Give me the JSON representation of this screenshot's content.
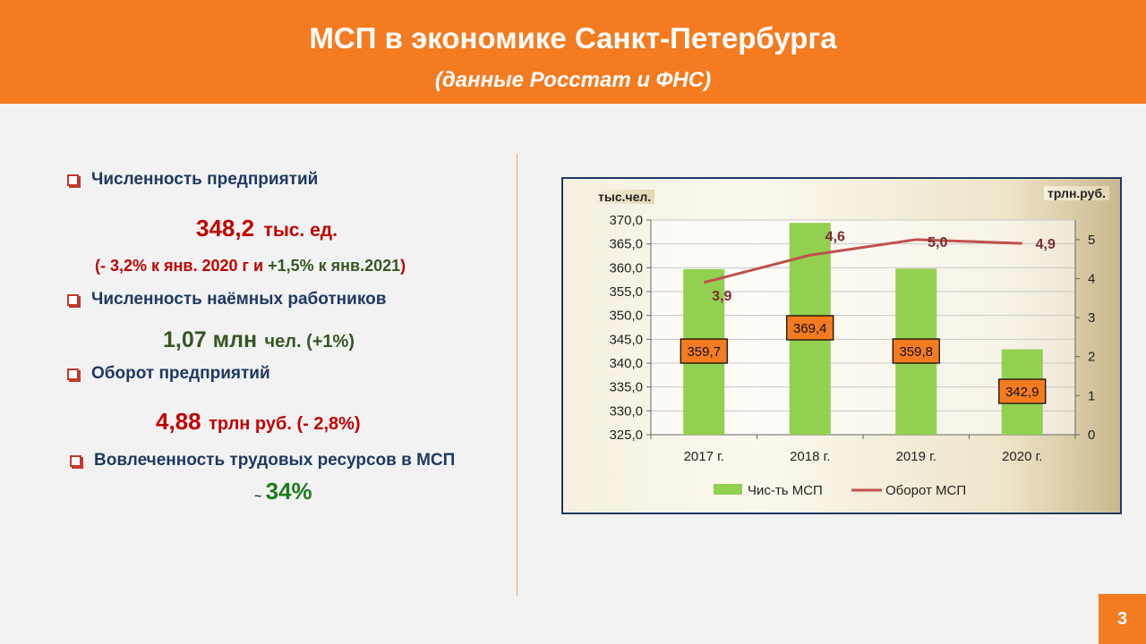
{
  "header": {
    "title": "МСП в экономике Санкт-Петербурга",
    "subtitle": "(данные Росстат и ФНС)"
  },
  "items": [
    {
      "label": "Численность предприятий"
    },
    {
      "label": "Численность наёмных работников"
    },
    {
      "label": "Оборот предприятий"
    },
    {
      "label": "Вовлеченность трудовых ресурсов в МСП"
    }
  ],
  "stats": {
    "enterprises_value": "348,2",
    "enterprises_unit": "тыс. ед.",
    "enterprises_change_open": "(- 3,2% к янв. 2020 г и ",
    "enterprises_change_green": "+1,5% к янв.2021",
    "enterprises_change_close": ")",
    "workers_value": "1,07 млн",
    "workers_unit": "чел.  (+1%)",
    "turnover_value": "4,88",
    "turnover_unit": "трлн руб. (- 2,8%)",
    "involvement_prefix": "~",
    "involvement_value": "34%"
  },
  "colors": {
    "header": "#f47b20",
    "red": "#c00000",
    "green_dark": "#375623",
    "green_bright": "#1e7b1e",
    "navy": "#1f3864",
    "bar": "#92d050",
    "line": "#c0504d",
    "label_box": "#f47b20"
  },
  "page_number": "3",
  "chart_data": {
    "type": "bar",
    "categories": [
      "2017 г.",
      "2018 г.",
      "2019 г.",
      "2020 г."
    ],
    "series": [
      {
        "name": "Чис-ть МСП",
        "type": "bar",
        "axis": "left",
        "values": [
          359.7,
          369.4,
          359.8,
          342.9
        ],
        "labels": [
          "359,7",
          "369,4",
          "359,8",
          "342,9"
        ]
      },
      {
        "name": "Оборот МСП",
        "type": "line",
        "axis": "right",
        "values": [
          3.9,
          4.6,
          5.0,
          4.9
        ],
        "labels": [
          "3,9",
          "4,6",
          "5,0",
          "4,9"
        ]
      }
    ],
    "ylabel": "тыс.чел.",
    "y2label": "трлн.руб.",
    "ylim": [
      325,
      370
    ],
    "y2lim": [
      0,
      5.5
    ],
    "yticks": [
      "325,0",
      "330,0",
      "335,0",
      "340,0",
      "345,0",
      "350,0",
      "355,0",
      "360,0",
      "365,0",
      "370,0"
    ],
    "y2ticks": [
      "0",
      "1",
      "2",
      "3",
      "4",
      "5"
    ],
    "grid": true,
    "legend": "bottom"
  }
}
